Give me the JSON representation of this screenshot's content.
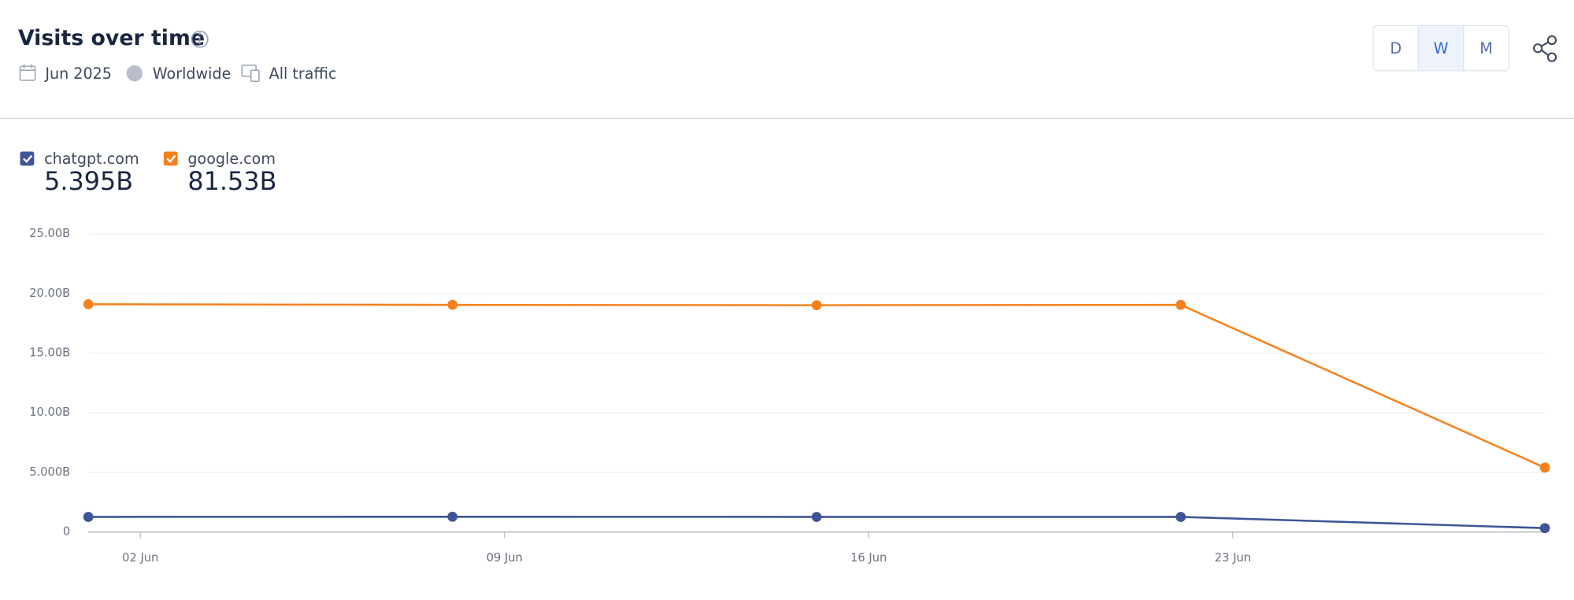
{
  "header": {
    "title": "Visits over time",
    "date": "Jun 2025",
    "region": "Worldwide",
    "traffic": "All traffic",
    "granularity": [
      "D",
      "W",
      "M"
    ],
    "selected": "W"
  },
  "chart_data": {
    "type": "line",
    "x": [
      1,
      8,
      15,
      22,
      29
    ],
    "xlim": [
      1,
      29
    ],
    "xticks": [
      {
        "value": 2,
        "label": "02 Jun"
      },
      {
        "value": 9,
        "label": "09 Jun"
      },
      {
        "value": 16,
        "label": "16 Jun"
      },
      {
        "value": 23,
        "label": "23 Jun"
      }
    ],
    "ylim": [
      0,
      25
    ],
    "yticks": [
      0,
      {
        "value": 5,
        "label": "5.000B"
      },
      {
        "value": 10,
        "label": "10.00B"
      },
      {
        "value": 15,
        "label": "15.00B"
      },
      {
        "value": 20,
        "label": "20.00B"
      },
      {
        "value": 25,
        "label": "25.00B"
      }
    ],
    "grid": true,
    "series": [
      {
        "name": "chatgpt.com",
        "color": "#3f5597",
        "total": 5.395,
        "total_label": "5.395B",
        "values": [
          1.27,
          1.28,
          1.27,
          1.27,
          0.33
        ]
      },
      {
        "name": "google.com",
        "color": "#f5821f",
        "total": 81.53,
        "total_label": "81.53B",
        "values": [
          19.1,
          19.05,
          19.02,
          19.05,
          5.4
        ]
      }
    ]
  }
}
